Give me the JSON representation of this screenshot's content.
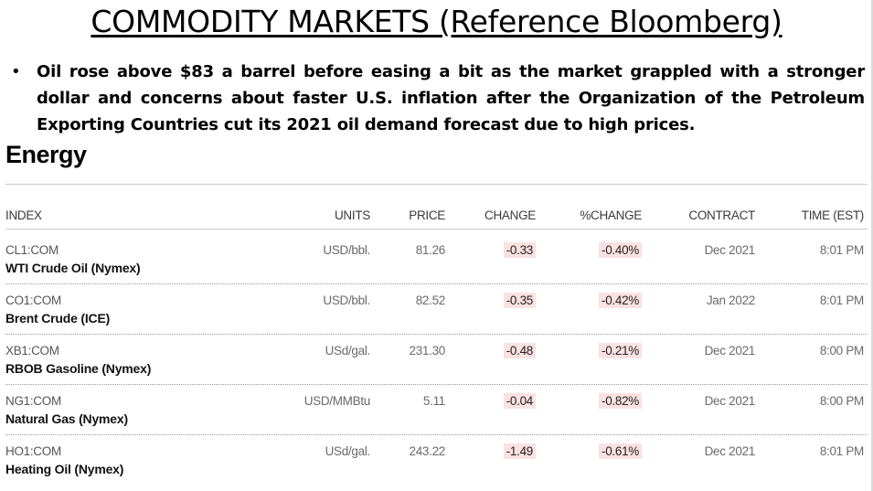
{
  "slide": {
    "title": "COMMODITY MARKETS (Reference Bloomberg)",
    "bullet_char": "•",
    "bullet": "Oil rose above $83 a barrel before easing a bit as the market grappled with a stronger dollar and concerns about faster U.S. inflation after the Organization of the Petroleum Exporting Countries cut its 2021 oil demand forecast due to high prices."
  },
  "energy": {
    "heading": "Energy",
    "columns": {
      "index": "INDEX",
      "units": "UNITS",
      "price": "PRICE",
      "change": "CHANGE",
      "pct_change": "%CHANGE",
      "contract": "CONTRACT",
      "time": "TIME (EST)"
    },
    "rows": [
      {
        "ticker": "CL1:COM",
        "name": "WTI Crude Oil (Nymex)",
        "units": "USD/bbl.",
        "price": "81.26",
        "change": "-0.33",
        "pct_change": "-0.40%",
        "contract": "Dec 2021",
        "time": "8:01 PM"
      },
      {
        "ticker": "CO1:COM",
        "name": "Brent Crude (ICE)",
        "units": "USD/bbl.",
        "price": "82.52",
        "change": "-0.35",
        "pct_change": "-0.42%",
        "contract": "Jan 2022",
        "time": "8:01 PM"
      },
      {
        "ticker": "XB1:COM",
        "name": "RBOB Gasoline (Nymex)",
        "units": "USd/gal.",
        "price": "231.30",
        "change": "-0.48",
        "pct_change": "-0.21%",
        "contract": "Dec 2021",
        "time": "8:00 PM"
      },
      {
        "ticker": "NG1:COM",
        "name": "Natural Gas (Nymex)",
        "units": "USD/MMBtu",
        "price": "5.11",
        "change": "-0.04",
        "pct_change": "-0.82%",
        "contract": "Dec 2021",
        "time": "8:00 PM"
      },
      {
        "ticker": "HO1:COM",
        "name": "Heating Oil (Nymex)",
        "units": "USd/gal.",
        "price": "243.22",
        "change": "-1.49",
        "pct_change": "-0.61%",
        "contract": "Dec 2021",
        "time": "8:01 PM"
      }
    ],
    "colors": {
      "negative_bg": "#fbe2e2",
      "rule": "#c8c8c8"
    }
  }
}
